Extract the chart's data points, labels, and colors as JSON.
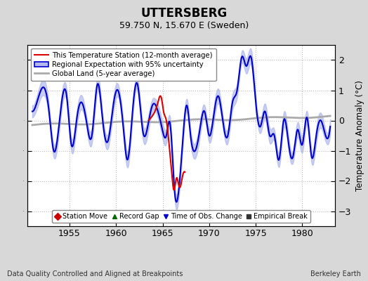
{
  "title": "UTTERSBERG",
  "subtitle": "59.750 N, 15.670 E (Sweden)",
  "ylabel": "Temperature Anomaly (°C)",
  "xlabel_bottom": "Data Quality Controlled and Aligned at Breakpoints",
  "xlabel_right": "Berkeley Earth",
  "ylim": [
    -3.5,
    2.5
  ],
  "yticks": [
    -3,
    -2,
    -1,
    0,
    1,
    2
  ],
  "xlim": [
    1950.5,
    1983.5
  ],
  "xticks": [
    1955,
    1960,
    1965,
    1970,
    1975,
    1980
  ],
  "bg_color": "#d8d8d8",
  "plot_bg_color": "#ffffff",
  "blue_color": "#0000cc",
  "blue_fill": "#b0b8ee",
  "red_color": "#dd0000",
  "gray_color": "#aaaaaa",
  "legend1_entries": [
    {
      "label": "This Temperature Station (12-month average)",
      "color": "#dd0000",
      "lw": 1.5
    },
    {
      "label": "Regional Expectation with 95% uncertainty",
      "color": "#0000cc",
      "lw": 1.5,
      "fill_color": "#b0b8ee"
    },
    {
      "label": "Global Land (5-year average)",
      "color": "#aaaaaa",
      "lw": 2.0
    }
  ],
  "legend2_entries": [
    {
      "label": "Station Move",
      "marker": "D",
      "color": "#cc0000"
    },
    {
      "label": "Record Gap",
      "marker": "^",
      "color": "#006600"
    },
    {
      "label": "Time of Obs. Change",
      "marker": "v",
      "color": "#0000cc"
    },
    {
      "label": "Empirical Break",
      "marker": "s",
      "color": "#333333"
    }
  ],
  "obs_change_x": 1965.3,
  "obs_change_y": -3.25
}
